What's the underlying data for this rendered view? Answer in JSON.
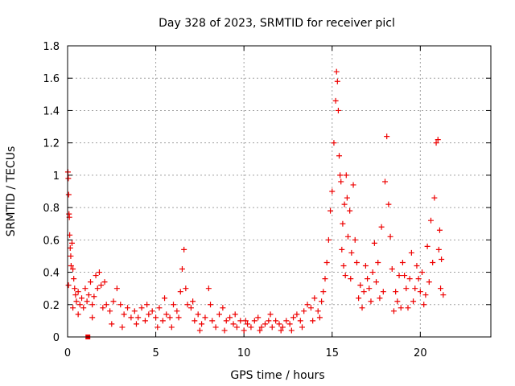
{
  "chart_data": {
    "type": "scatter",
    "title": "Day 328 of 2023, SRMTID for receiver picl",
    "xlabel": "GPS time / hours",
    "ylabel": "SRMTID / TECUs",
    "xlim": [
      0,
      24
    ],
    "ylim": [
      0,
      1.8
    ],
    "x_ticks": [
      "0",
      "5",
      "10",
      "15",
      "20"
    ],
    "x_tick_values": [
      0,
      5,
      10,
      15,
      20
    ],
    "y_ticks": [
      "0",
      "0.2",
      "0.4",
      "0.6",
      "0.8",
      "1",
      "1.2",
      "1.4",
      "1.6",
      "1.8"
    ],
    "y_tick_values": [
      0,
      0.2,
      0.4,
      0.6,
      0.8,
      1.0,
      1.2,
      1.4,
      1.6,
      1.8
    ],
    "grid": true,
    "marker": "plus",
    "color": "#ee0000",
    "series": [
      {
        "name": "SRMTID",
        "points": [
          [
            0.02,
            1.02
          ],
          [
            0.04,
            0.98
          ],
          [
            0.06,
            0.88
          ],
          [
            0.08,
            0.76
          ],
          [
            0.1,
            0.74
          ],
          [
            0.12,
            0.63
          ],
          [
            0.15,
            0.55
          ],
          [
            0.18,
            0.5
          ],
          [
            0.2,
            0.44
          ],
          [
            0.25,
            0.58
          ],
          [
            0.3,
            0.42
          ],
          [
            0.35,
            0.36
          ],
          [
            0.4,
            0.3
          ],
          [
            0.45,
            0.26
          ],
          [
            0.5,
            0.22
          ],
          [
            0.6,
            0.28
          ],
          [
            0.7,
            0.2
          ],
          [
            0.8,
            0.24
          ],
          [
            0.9,
            0.18
          ],
          [
            1.0,
            0.3
          ],
          [
            1.1,
            0.22
          ],
          [
            1.2,
            0.26
          ],
          [
            1.3,
            0.34
          ],
          [
            1.4,
            0.2
          ],
          [
            1.5,
            0.25
          ],
          [
            1.6,
            0.38
          ],
          [
            1.7,
            0.3
          ],
          [
            1.8,
            0.4
          ],
          [
            1.9,
            0.32
          ],
          [
            2.0,
            0.18
          ],
          [
            2.2,
            0.2
          ],
          [
            2.4,
            0.16
          ],
          [
            2.6,
            0.22
          ],
          [
            2.8,
            0.3
          ],
          [
            3.0,
            0.2
          ],
          [
            3.2,
            0.14
          ],
          [
            3.4,
            0.18
          ],
          [
            3.6,
            0.12
          ],
          [
            3.8,
            0.16
          ],
          [
            4.0,
            0.12
          ],
          [
            4.2,
            0.18
          ],
          [
            4.4,
            0.1
          ],
          [
            4.6,
            0.14
          ],
          [
            4.8,
            0.16
          ],
          [
            5.0,
            0.12
          ],
          [
            5.2,
            0.18
          ],
          [
            5.4,
            0.1
          ],
          [
            5.6,
            0.14
          ],
          [
            5.8,
            0.12
          ],
          [
            6.0,
            0.2
          ],
          [
            6.2,
            0.16
          ],
          [
            6.4,
            0.28
          ],
          [
            6.5,
            0.42
          ],
          [
            6.6,
            0.54
          ],
          [
            6.7,
            0.3
          ],
          [
            6.8,
            0.2
          ],
          [
            7.0,
            0.18
          ],
          [
            7.2,
            0.1
          ],
          [
            7.4,
            0.14
          ],
          [
            7.6,
            0.08
          ],
          [
            7.8,
            0.12
          ],
          [
            8.0,
            0.3
          ],
          [
            8.2,
            0.1
          ],
          [
            8.4,
            0.06
          ],
          [
            8.6,
            0.14
          ],
          [
            8.8,
            0.18
          ],
          [
            9.0,
            0.1
          ],
          [
            9.2,
            0.12
          ],
          [
            9.4,
            0.08
          ],
          [
            9.6,
            0.06
          ],
          [
            9.8,
            0.1
          ],
          [
            10.0,
            0.04
          ],
          [
            10.2,
            0.08
          ],
          [
            10.4,
            0.06
          ],
          [
            10.6,
            0.1
          ],
          [
            10.8,
            0.12
          ],
          [
            11.0,
            0.06
          ],
          [
            11.2,
            0.08
          ],
          [
            11.4,
            0.1
          ],
          [
            11.6,
            0.06
          ],
          [
            11.8,
            0.1
          ],
          [
            12.0,
            0.08
          ],
          [
            12.2,
            0.06
          ],
          [
            12.4,
            0.1
          ],
          [
            12.6,
            0.08
          ],
          [
            12.8,
            0.12
          ],
          [
            13.0,
            0.14
          ],
          [
            13.2,
            0.1
          ],
          [
            13.4,
            0.16
          ],
          [
            13.6,
            0.2
          ],
          [
            13.8,
            0.18
          ],
          [
            14.0,
            0.24
          ],
          [
            14.2,
            0.16
          ],
          [
            14.4,
            0.22
          ],
          [
            14.6,
            0.36
          ],
          [
            14.8,
            0.6
          ],
          [
            14.9,
            0.78
          ],
          [
            15.0,
            0.9
          ],
          [
            15.1,
            1.2
          ],
          [
            15.2,
            1.46
          ],
          [
            15.25,
            1.64
          ],
          [
            15.3,
            1.58
          ],
          [
            15.35,
            1.4
          ],
          [
            15.4,
            1.12
          ],
          [
            15.5,
            0.96
          ],
          [
            15.6,
            0.7
          ],
          [
            15.7,
            0.82
          ],
          [
            15.8,
            1.0
          ],
          [
            15.9,
            0.62
          ],
          [
            16.0,
            0.78
          ],
          [
            16.1,
            0.52
          ],
          [
            16.2,
            0.94
          ],
          [
            16.4,
            0.46
          ],
          [
            16.6,
            0.32
          ],
          [
            16.8,
            0.28
          ],
          [
            17.0,
            0.36
          ],
          [
            17.2,
            0.22
          ],
          [
            17.4,
            0.58
          ],
          [
            17.6,
            0.46
          ],
          [
            17.8,
            0.68
          ],
          [
            18.0,
            0.96
          ],
          [
            18.1,
            1.24
          ],
          [
            18.2,
            0.82
          ],
          [
            18.3,
            0.62
          ],
          [
            18.4,
            0.42
          ],
          [
            18.6,
            0.28
          ],
          [
            18.8,
            0.38
          ],
          [
            19.0,
            0.46
          ],
          [
            19.2,
            0.3
          ],
          [
            19.4,
            0.36
          ],
          [
            19.6,
            0.22
          ],
          [
            19.8,
            0.44
          ],
          [
            20.0,
            0.28
          ],
          [
            20.2,
            0.2
          ],
          [
            20.4,
            0.56
          ],
          [
            20.6,
            0.72
          ],
          [
            20.8,
            0.86
          ],
          [
            20.9,
            1.2
          ],
          [
            21.0,
            1.22
          ],
          [
            21.1,
            0.66
          ],
          [
            21.2,
            0.48
          ],
          [
            21.3,
            0.26
          ],
          [
            0.05,
            0.32
          ],
          [
            0.3,
            0.18
          ],
          [
            0.6,
            0.14
          ],
          [
            1.4,
            0.12
          ],
          [
            2.1,
            0.34
          ],
          [
            2.5,
            0.08
          ],
          [
            3.1,
            0.06
          ],
          [
            3.9,
            0.08
          ],
          [
            4.5,
            0.2
          ],
          [
            5.1,
            0.06
          ],
          [
            5.5,
            0.24
          ],
          [
            5.9,
            0.06
          ],
          [
            6.3,
            0.12
          ],
          [
            7.1,
            0.22
          ],
          [
            7.5,
            0.04
          ],
          [
            8.1,
            0.2
          ],
          [
            8.9,
            0.04
          ],
          [
            9.5,
            0.14
          ],
          [
            10.1,
            0.1
          ],
          [
            10.9,
            0.04
          ],
          [
            11.5,
            0.14
          ],
          [
            12.1,
            0.04
          ],
          [
            12.7,
            0.04
          ],
          [
            13.3,
            0.06
          ],
          [
            13.9,
            0.1
          ],
          [
            14.3,
            0.12
          ],
          [
            14.5,
            0.28
          ],
          [
            14.7,
            0.46
          ],
          [
            15.45,
            1.0
          ],
          [
            15.55,
            0.54
          ],
          [
            15.65,
            0.44
          ],
          [
            15.75,
            0.38
          ],
          [
            15.85,
            0.86
          ],
          [
            16.05,
            0.36
          ],
          [
            16.3,
            0.6
          ],
          [
            16.5,
            0.24
          ],
          [
            16.7,
            0.18
          ],
          [
            16.9,
            0.44
          ],
          [
            17.1,
            0.3
          ],
          [
            17.3,
            0.4
          ],
          [
            17.5,
            0.34
          ],
          [
            17.7,
            0.24
          ],
          [
            17.9,
            0.28
          ],
          [
            18.5,
            0.16
          ],
          [
            18.7,
            0.22
          ],
          [
            18.9,
            0.18
          ],
          [
            19.1,
            0.38
          ],
          [
            19.3,
            0.18
          ],
          [
            19.5,
            0.52
          ],
          [
            19.7,
            0.3
          ],
          [
            19.9,
            0.36
          ],
          [
            20.1,
            0.4
          ],
          [
            20.3,
            0.26
          ],
          [
            20.5,
            0.34
          ],
          [
            20.7,
            0.46
          ],
          [
            21.05,
            0.54
          ],
          [
            21.15,
            0.3
          ]
        ]
      },
      {
        "name": "marker",
        "style": "square",
        "points": [
          [
            1.15,
            0.0
          ]
        ]
      }
    ]
  }
}
